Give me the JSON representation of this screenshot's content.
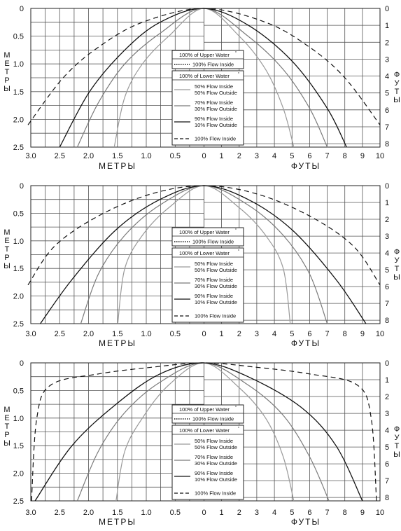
{
  "labels": {
    "left_axis_title": "МЕТРЫ",
    "right_axis_title": "ФУТЫ",
    "bottom_left_title": "МЕТРЫ",
    "bottom_right_title": "ФУТЫ",
    "legend_upper_header": "100% of Upper Water",
    "legend_upper_item": "100% Flow Inside",
    "legend_lower_header": "100% of Lower Water",
    "legend_items": [
      [
        "50% Flow Inside",
        "50% Flow Outside"
      ],
      [
        "70% Flow Inside",
        "30% Flow Outside"
      ],
      [
        "90% Flow Inside",
        "10% Flow Outside"
      ],
      [
        "100% Flow Inside"
      ]
    ]
  },
  "styles": {
    "line_colors": [
      "#9a9a9a",
      "#7a7a7a",
      "#111111",
      "#111111"
    ],
    "grid_color": "#555555"
  },
  "chart_data": [
    {
      "type": "line",
      "x_left_unit": "metres",
      "x_right_unit": "feet",
      "y_left_unit": "metres",
      "y_right_unit": "feet",
      "x_left_ticks": [
        "3.0",
        "2.5",
        "2.0",
        "1.5",
        "1.0",
        "0.5",
        "0"
      ],
      "x_right_ticks": [
        "0",
        "1",
        "2",
        "3",
        "4",
        "5",
        "6",
        "7",
        "8",
        "9",
        "10"
      ],
      "y_left_ticks": [
        "0",
        "0.5",
        "1.0",
        "1.5",
        "2.0",
        "2.5"
      ],
      "y_right_ticks": [
        "0",
        "1",
        "2",
        "3",
        "4",
        "5",
        "6",
        "7",
        "8"
      ],
      "xlim_ft": [
        -10,
        10
      ],
      "ylim_m": [
        0,
        2.5
      ],
      "series": [
        {
          "name": "50% Flow Inside / 50% Flow Outside",
          "points_ft_m": [
            [
              -5.1,
              2.5
            ],
            [
              -4.5,
              1.6
            ],
            [
              -3.5,
              1.0
            ],
            [
              -2.0,
              0.5
            ],
            [
              0,
              0
            ],
            [
              2.0,
              0.5
            ],
            [
              3.5,
              1.1
            ],
            [
              4.5,
              1.8
            ],
            [
              5.1,
              2.5
            ]
          ]
        },
        {
          "name": "70% Flow Inside / 30% Flow Outside",
          "points_ft_m": [
            [
              -7.2,
              2.5
            ],
            [
              -6.0,
              1.7
            ],
            [
              -4.5,
              1.0
            ],
            [
              -2.5,
              0.45
            ],
            [
              0,
              0
            ],
            [
              2.5,
              0.5
            ],
            [
              4.5,
              1.1
            ],
            [
              6.0,
              1.8
            ],
            [
              7.0,
              2.5
            ]
          ]
        },
        {
          "name": "90% Flow Inside / 10% Flow Outside",
          "points_ft_m": [
            [
              -8.2,
              2.5
            ],
            [
              -6.5,
              1.5
            ],
            [
              -4.5,
              0.75
            ],
            [
              -2.5,
              0.25
            ],
            [
              0,
              0
            ],
            [
              2.5,
              0.3
            ],
            [
              5.0,
              0.95
            ],
            [
              7.0,
              1.8
            ],
            [
              8.1,
              2.5
            ]
          ]
        },
        {
          "name": "100% Flow Inside",
          "points_ft_m": [
            [
              -10,
              2.1
            ],
            [
              -8.0,
              1.25
            ],
            [
              -6.0,
              0.7
            ],
            [
              -3.5,
              0.25
            ],
            [
              0,
              0
            ],
            [
              3.5,
              0.25
            ],
            [
              6.0,
              0.7
            ],
            [
              8.0,
              1.25
            ],
            [
              10,
              2.1
            ]
          ]
        }
      ]
    },
    {
      "type": "line",
      "x_left_unit": "metres",
      "x_right_unit": "feet",
      "y_left_unit": "metres",
      "y_right_unit": "feet",
      "x_left_ticks": [
        "3.0",
        "2.5",
        "2.0",
        "1.5",
        "1.0",
        "0.5",
        "0"
      ],
      "x_right_ticks": [
        "0",
        "1",
        "2",
        "3",
        "4",
        "5",
        "6",
        "7",
        "8",
        "9",
        "10"
      ],
      "y_left_ticks": [
        "0",
        "0.5",
        "1.0",
        "1.5",
        "2.0",
        "2.5"
      ],
      "y_right_ticks": [
        "0",
        "1",
        "2",
        "3",
        "4",
        "5",
        "6",
        "7",
        "8"
      ],
      "xlim_ft": [
        -10,
        10
      ],
      "ylim_m": [
        0,
        2.5
      ],
      "series": [
        {
          "name": "50% Flow Inside / 50% Flow Outside",
          "points_ft_m": [
            [
              -4.9,
              2.5
            ],
            [
              -4.5,
              1.5
            ],
            [
              -3.5,
              0.9
            ],
            [
              -2.0,
              0.4
            ],
            [
              0,
              0
            ],
            [
              2.0,
              0.4
            ],
            [
              3.5,
              0.9
            ],
            [
              4.5,
              1.5
            ],
            [
              4.9,
              2.5
            ]
          ]
        },
        {
          "name": "70% Flow Inside / 30% Flow Outside",
          "points_ft_m": [
            [
              -7.0,
              2.5
            ],
            [
              -6.0,
              1.6
            ],
            [
              -4.5,
              0.9
            ],
            [
              -2.5,
              0.35
            ],
            [
              0,
              0
            ],
            [
              2.5,
              0.35
            ],
            [
              4.5,
              0.9
            ],
            [
              6.0,
              1.6
            ],
            [
              7.0,
              2.5
            ]
          ]
        },
        {
          "name": "90% Flow Inside / 10% Flow Outside",
          "points_ft_m": [
            [
              -9.3,
              2.5
            ],
            [
              -7.5,
              1.7
            ],
            [
              -5.0,
              0.8
            ],
            [
              -2.5,
              0.25
            ],
            [
              0,
              0
            ],
            [
              2.5,
              0.25
            ],
            [
              5.0,
              0.8
            ],
            [
              7.5,
              1.7
            ],
            [
              9.2,
              2.5
            ]
          ]
        },
        {
          "name": "100% Flow Inside",
          "points_ft_m": [
            [
              -10,
              1.8
            ],
            [
              -8.5,
              1.1
            ],
            [
              -6.0,
              0.55
            ],
            [
              -3.0,
              0.15
            ],
            [
              0,
              0
            ],
            [
              3.0,
              0.15
            ],
            [
              6.0,
              0.55
            ],
            [
              8.5,
              1.1
            ],
            [
              10,
              1.8
            ]
          ]
        }
      ]
    },
    {
      "type": "line",
      "x_left_unit": "metres",
      "x_right_unit": "feet",
      "y_left_unit": "metres",
      "y_right_unit": "feet",
      "x_left_ticks": [
        "3.0",
        "2.5",
        "2.0",
        "1.5",
        "1.0",
        "0.5",
        "0"
      ],
      "x_right_ticks": [
        "0",
        "1",
        "2",
        "3",
        "4",
        "5",
        "6",
        "7",
        "8",
        "9",
        "10"
      ],
      "y_left_ticks": [
        "0",
        "0.5",
        "1.0",
        "1.5",
        "2.0",
        "2.5"
      ],
      "y_right_ticks": [
        "0",
        "1",
        "2",
        "3",
        "4",
        "5",
        "6",
        "7",
        "8"
      ],
      "xlim_ft": [
        -10,
        10
      ],
      "ylim_m": [
        0,
        2.5
      ],
      "series": [
        {
          "name": "50% Flow Inside / 50% Flow Outside",
          "points_ft_m": [
            [
              -5.0,
              2.5
            ],
            [
              -4.5,
              1.6
            ],
            [
              -3.5,
              1.0
            ],
            [
              -2.0,
              0.4
            ],
            [
              0,
              0
            ],
            [
              2.0,
              0.45
            ],
            [
              3.5,
              1.0
            ],
            [
              4.5,
              1.7
            ],
            [
              5.1,
              2.5
            ]
          ]
        },
        {
          "name": "70% Flow Inside / 30% Flow Outside",
          "points_ft_m": [
            [
              -7.2,
              2.5
            ],
            [
              -6.0,
              1.6
            ],
            [
              -4.5,
              0.9
            ],
            [
              -2.5,
              0.35
            ],
            [
              0,
              0
            ],
            [
              2.5,
              0.4
            ],
            [
              4.5,
              0.95
            ],
            [
              6.0,
              1.7
            ],
            [
              7.1,
              2.5
            ]
          ]
        },
        {
          "name": "90% Flow Inside / 10% Flow Outside",
          "points_ft_m": [
            [
              -9.6,
              2.5
            ],
            [
              -7.5,
              1.5
            ],
            [
              -5.0,
              0.75
            ],
            [
              -2.5,
              0.2
            ],
            [
              0,
              0
            ],
            [
              2.5,
              0.25
            ],
            [
              5.5,
              0.8
            ],
            [
              7.5,
              1.5
            ],
            [
              9.0,
              2.5
            ]
          ]
        },
        {
          "name": "100% Flow Inside",
          "points_ft_m": [
            [
              -9.8,
              2.5
            ],
            [
              -9.5,
              1.0
            ],
            [
              -8.7,
              0.4
            ],
            [
              -6.0,
              0.2
            ],
            [
              -3.0,
              0.08
            ],
            [
              0,
              0
            ],
            [
              3.0,
              0.08
            ],
            [
              6.0,
              0.2
            ],
            [
              8.7,
              0.4
            ],
            [
              9.5,
              1.0
            ],
            [
              9.8,
              2.5
            ]
          ]
        }
      ]
    }
  ]
}
